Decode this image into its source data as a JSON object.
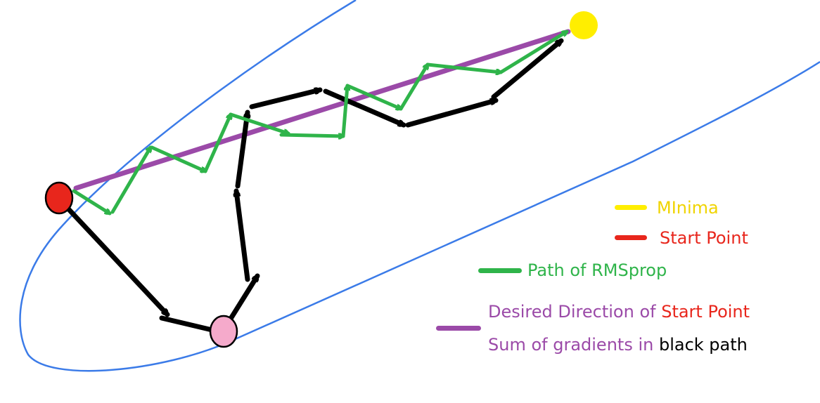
{
  "colors": {
    "boundary": "#3b7be8",
    "black_path": "#000000",
    "rmsprop_path": "#2fb44a",
    "desired_direction": "#9b4aa8",
    "start_point": "#e8261c",
    "pink_point": "#f5aacb",
    "minima": "#ffee00",
    "black_text": "#000000"
  },
  "legend": {
    "minima_label": "MInima",
    "start_label": "Start Point",
    "rmsprop_label": "Path of RMSprop",
    "desired_prefix": "Desired Direction of ",
    "desired_suffix": "Start Point",
    "sum_prefix": "Sum of gradients in ",
    "sum_suffix": "black path"
  }
}
